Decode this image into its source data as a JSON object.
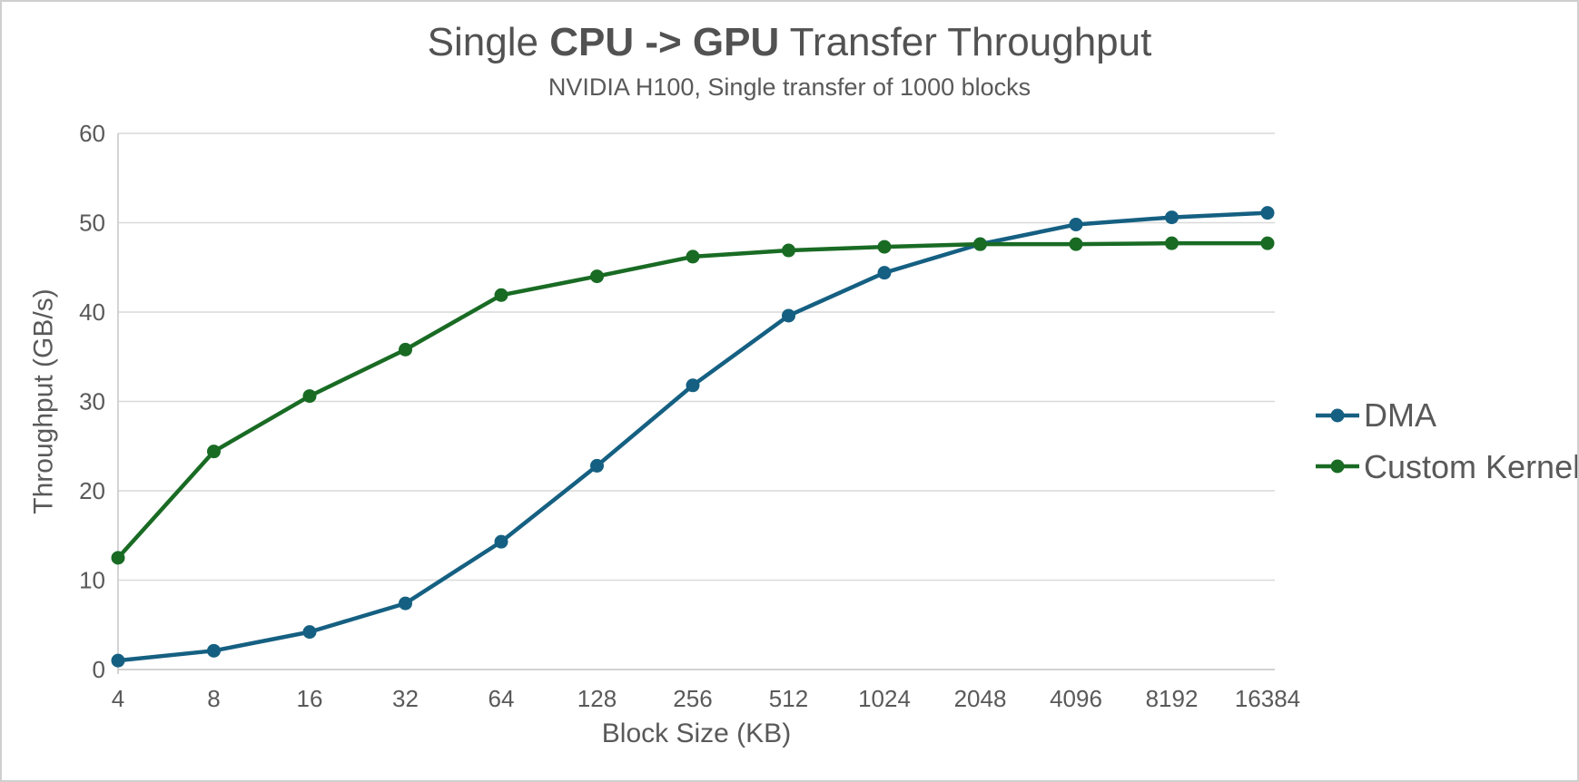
{
  "header": {
    "title_prefix": "Single ",
    "title_bold": "CPU -> GPU",
    "title_suffix": " Transfer Throughput",
    "subtitle": "NVIDIA H100, Single transfer of 1000 blocks"
  },
  "legend": {
    "position": "right",
    "items": [
      {
        "label": "DMA",
        "color": "#156082"
      },
      {
        "label": "Custom Kernel",
        "color": "#196B24"
      }
    ]
  },
  "axes": {
    "x_title": "Block Size (KB)",
    "y_title": "Throughput (GB/s)",
    "y_tick_labels": [
      "0",
      "10",
      "20",
      "30",
      "40",
      "50",
      "60"
    ],
    "x_tick_labels": [
      "4",
      "8",
      "16",
      "32",
      "64",
      "128",
      "256",
      "512",
      "1024",
      "2048",
      "4096",
      "8192",
      "16384"
    ]
  },
  "chart_data": {
    "type": "line",
    "title": "Single CPU -> GPU Transfer Throughput",
    "subtitle": "NVIDIA H100, Single transfer of 1000 blocks",
    "categories": [
      4,
      8,
      16,
      32,
      64,
      128,
      256,
      512,
      1024,
      2048,
      4096,
      8192,
      16384
    ],
    "x_scale": "log2-categorical",
    "xlabel": "Block Size (KB)",
    "ylabel": "Throughput (GB/s)",
    "ylim": [
      0,
      60
    ],
    "ytick_step": 10,
    "grid": true,
    "legend_position": "right",
    "marker": "circle",
    "series": [
      {
        "name": "DMA",
        "color": "#156082",
        "values": [
          1.0,
          2.1,
          4.2,
          7.4,
          14.3,
          22.8,
          31.8,
          39.6,
          44.4,
          47.6,
          49.8,
          50.6,
          51.1
        ]
      },
      {
        "name": "Custom Kernel",
        "color": "#196B24",
        "values": [
          12.5,
          24.4,
          30.6,
          35.8,
          41.9,
          44.0,
          46.2,
          46.9,
          47.3,
          47.6,
          47.6,
          47.7,
          47.7
        ]
      }
    ]
  },
  "style_colors": {
    "gridline": "#D9D9D9",
    "axis_line": "#C9C9C9",
    "tick_text": "#595959",
    "title_text": "#525252"
  }
}
